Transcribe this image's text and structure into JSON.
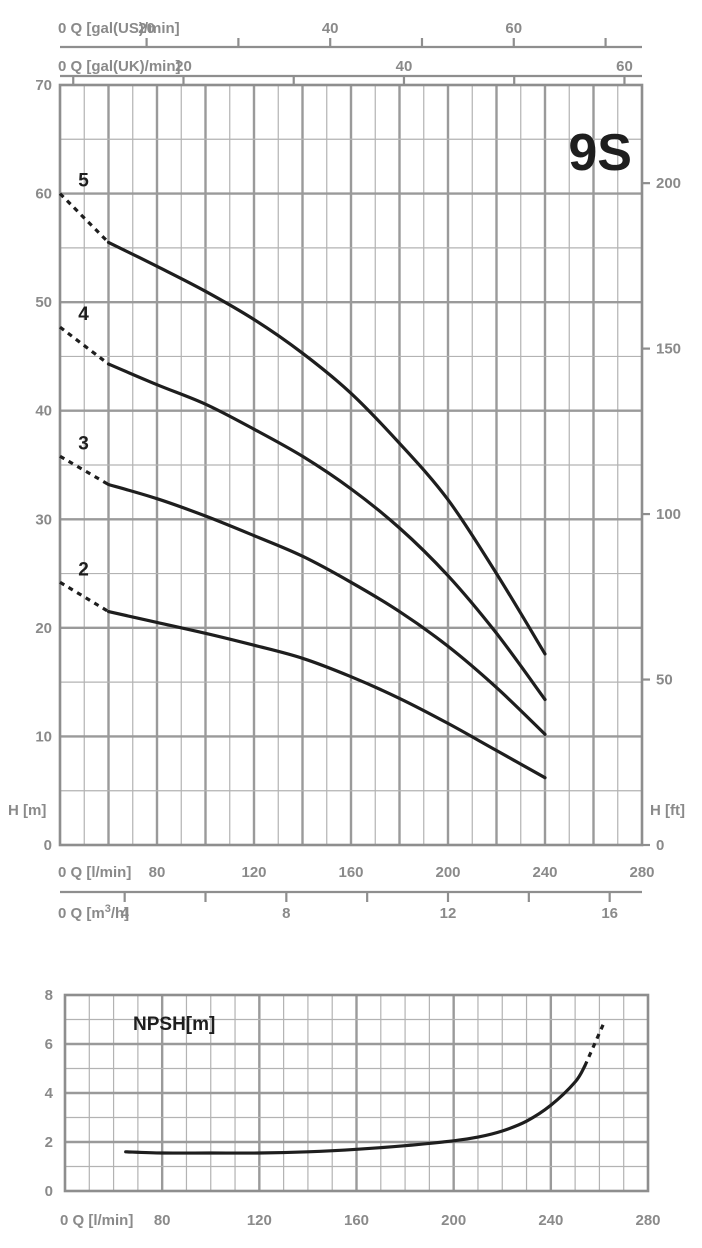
{
  "model": "9S",
  "chart_data": [
    {
      "type": "line",
      "title": "9S",
      "x_unit": "l/min",
      "xlim": [
        40,
        280
      ],
      "x_ticks": [
        80,
        120,
        160,
        200,
        240,
        280
      ],
      "ylim": [
        0,
        70
      ],
      "y_ticks": [
        0,
        10,
        20,
        30,
        40,
        50,
        60,
        70
      ],
      "ylabel": "H [m]",
      "ylabel_right": "H [ft]",
      "right_ticks_ft": [
        0,
        50,
        100,
        150,
        200
      ],
      "axes": {
        "q_lmin_label": "0 Q [l/min]",
        "q_m3h_label_parts": [
          "0 Q [m",
          "3",
          "/h]"
        ],
        "q_m3h_ticks": [
          4,
          8,
          12,
          16
        ],
        "q_gal_us_label": "0 Q [gal(US)/min]",
        "q_gal_us_ticks": [
          20,
          40,
          60
        ],
        "q_gal_uk_label": "0 Q [gal(UK)/min]",
        "q_gal_uk_ticks": [
          20,
          40,
          60
        ]
      },
      "grid": true,
      "series": [
        {
          "name": "5",
          "dashed": {
            "x": [
              40,
              60
            ],
            "y": [
              60.0,
              55.5
            ]
          },
          "solid": {
            "x": [
              60,
              80,
              100,
              120,
              140,
              160,
              180,
              200,
              220,
              240
            ],
            "y": [
              55.5,
              53.3,
              51.0,
              48.4,
              45.3,
              41.6,
              37.0,
              31.8,
              25.0,
              17.6
            ]
          }
        },
        {
          "name": "4",
          "dashed": {
            "x": [
              40,
              60
            ],
            "y": [
              47.7,
              44.3
            ]
          },
          "solid": {
            "x": [
              60,
              80,
              100,
              120,
              140,
              160,
              180,
              200,
              220,
              240
            ],
            "y": [
              44.3,
              42.4,
              40.6,
              38.3,
              35.8,
              32.8,
              29.2,
              24.8,
              19.5,
              13.4
            ]
          }
        },
        {
          "name": "3",
          "dashed": {
            "x": [
              40,
              60
            ],
            "y": [
              35.8,
              33.2
            ]
          },
          "solid": {
            "x": [
              60,
              80,
              100,
              120,
              140,
              160,
              180,
              200,
              220,
              240
            ],
            "y": [
              33.2,
              31.9,
              30.3,
              28.5,
              26.6,
              24.2,
              21.5,
              18.3,
              14.5,
              10.2
            ]
          }
        },
        {
          "name": "2",
          "dashed": {
            "x": [
              40,
              60
            ],
            "y": [
              24.2,
              21.5
            ]
          },
          "solid": {
            "x": [
              60,
              80,
              100,
              120,
              140,
              160,
              180,
              200,
              220,
              240
            ],
            "y": [
              21.5,
              20.5,
              19.5,
              18.4,
              17.2,
              15.5,
              13.5,
              11.2,
              8.7,
              6.2
            ]
          }
        }
      ]
    },
    {
      "type": "line",
      "title": "NPSH[m]",
      "x_unit": "l/min",
      "xlim": [
        40,
        280
      ],
      "x_ticks": [
        80,
        120,
        160,
        200,
        240,
        280
      ],
      "x_axis_label": "0 Q [l/min]",
      "ylim": [
        0,
        8
      ],
      "y_ticks": [
        0,
        2,
        4,
        6,
        8
      ],
      "grid": true,
      "series": [
        {
          "name": "NPSH",
          "solid": {
            "x": [
              65,
              80,
              100,
              120,
              140,
              160,
              180,
              200,
              210,
              220,
              230,
              240,
              250,
              254
            ],
            "y": [
              1.6,
              1.55,
              1.55,
              1.55,
              1.6,
              1.7,
              1.85,
              2.05,
              2.2,
              2.45,
              2.85,
              3.5,
              4.45,
              5.1
            ]
          },
          "dashed": {
            "x": [
              254,
              258,
              262
            ],
            "y": [
              5.1,
              6.0,
              6.9
            ]
          }
        }
      ]
    }
  ]
}
